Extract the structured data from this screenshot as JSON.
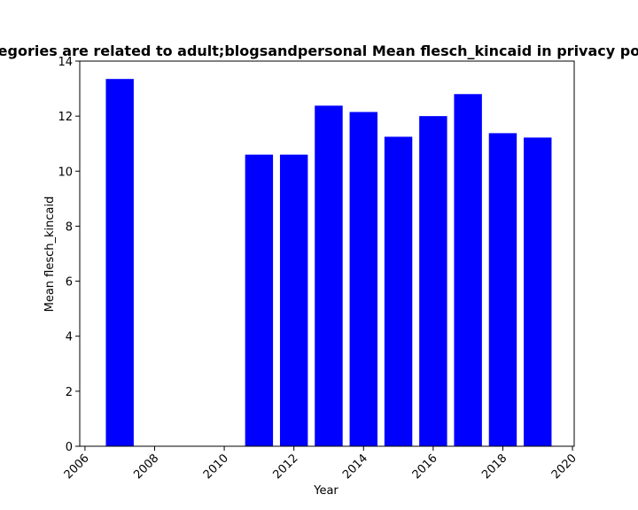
{
  "chart_data": {
    "type": "bar",
    "title": "Categories are related to adult;blogsandpersonal Mean flesch_kincaid in privacy policies",
    "xlabel": "Year",
    "ylabel": "Mean flesch_kincaid",
    "x": [
      2007,
      2011,
      2012,
      2013,
      2014,
      2015,
      2016,
      2017,
      2018,
      2019
    ],
    "values": [
      13.35,
      10.6,
      10.6,
      12.38,
      12.15,
      11.25,
      12.0,
      12.8,
      11.38,
      11.22
    ],
    "xlim": [
      2005.85,
      2020.05
    ],
    "ylim": [
      0,
      14
    ],
    "xticks": [
      "2006",
      "2008",
      "2010",
      "2012",
      "2014",
      "2016",
      "2018",
      "2020"
    ],
    "yticks": [
      "0",
      "2",
      "4",
      "6",
      "8",
      "10",
      "12",
      "14"
    ],
    "bar_color": "#0000ff",
    "grid": false,
    "legend": "none"
  }
}
